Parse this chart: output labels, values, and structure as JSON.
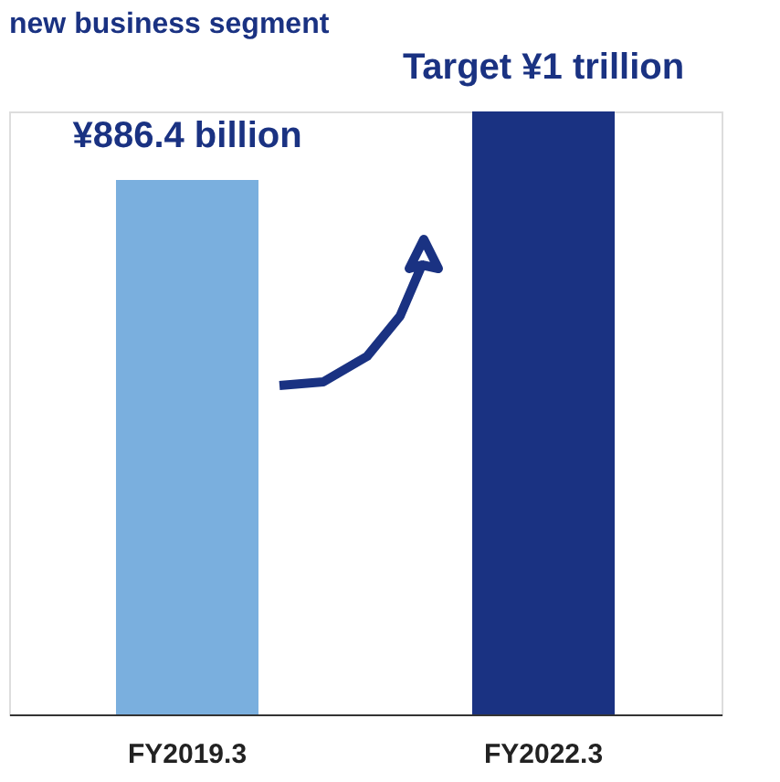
{
  "chart_data": {
    "type": "bar",
    "title": "new business segment",
    "categories": [
      "FY2019.3",
      "FY2022.3"
    ],
    "values": [
      886.4,
      1000
    ],
    "colors": [
      "#7aafde",
      "#1a3282"
    ],
    "value_labels": [
      "¥886.4 billion",
      "Target ¥1 trillion"
    ]
  }
}
